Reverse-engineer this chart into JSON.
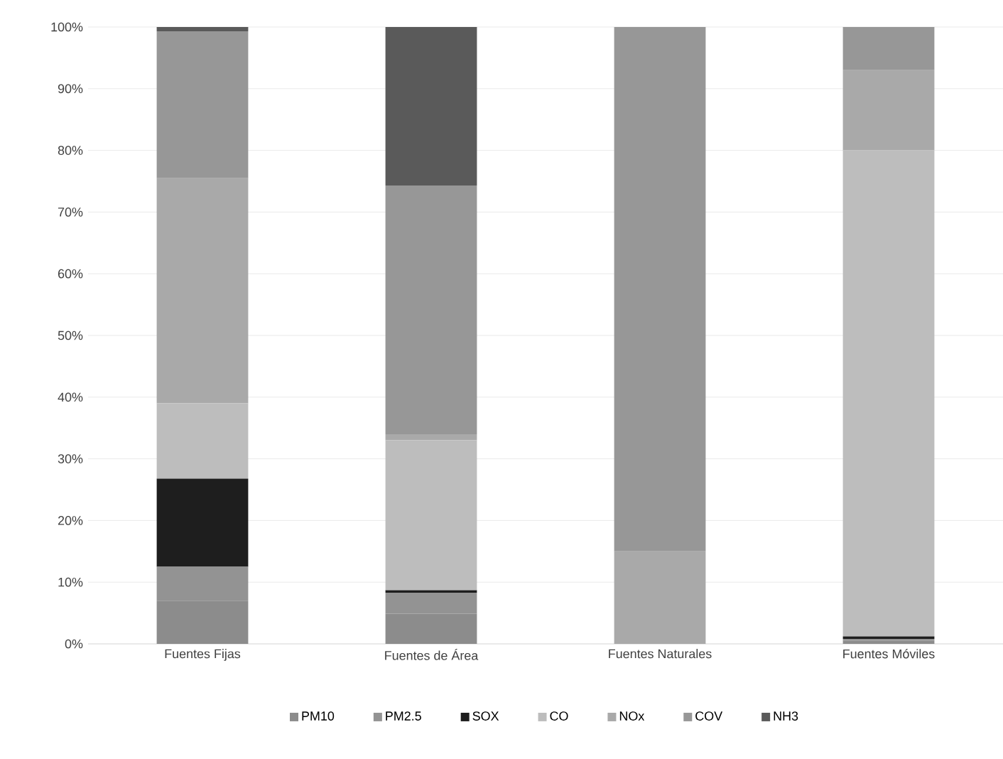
{
  "chart_data": {
    "type": "bar",
    "stacked": true,
    "categories": [
      "Fuentes Fijas",
      "Fuentes de Área",
      "Fuentes Naturales",
      "Fuentes Móviles"
    ],
    "series": [
      {
        "name": "PM10",
        "color": "#8c8c8c",
        "values": [
          7,
          4.9,
          0,
          0.5
        ]
      },
      {
        "name": "PM2.5",
        "color": "#939393",
        "values": [
          5.5,
          3.4,
          0,
          0.3
        ]
      },
      {
        "name": "SOX",
        "color": "#1e1e1e",
        "values": [
          14.3,
          0.4,
          0,
          0.4
        ]
      },
      {
        "name": "CO",
        "color": "#bdbdbd",
        "values": [
          12.2,
          24.3,
          0,
          78.8
        ]
      },
      {
        "name": "NOx",
        "color": "#a9a9a9",
        "values": [
          36.5,
          1,
          15,
          13
        ]
      },
      {
        "name": "COV",
        "color": "#979797",
        "values": [
          23.8,
          40.3,
          85,
          7
        ]
      },
      {
        "name": "NH3",
        "color": "#5a5a5a",
        "values": [
          0.7,
          25.7,
          0,
          0
        ]
      }
    ],
    "ylim": [
      0,
      100
    ],
    "yticks": [
      {
        "value": 0,
        "label": "0%"
      },
      {
        "value": 10,
        "label": "10%"
      },
      {
        "value": 20,
        "label": "20%"
      },
      {
        "value": 30,
        "label": "30%"
      },
      {
        "value": 40,
        "label": "40%"
      },
      {
        "value": 50,
        "label": "50%"
      },
      {
        "value": 60,
        "label": "60%"
      },
      {
        "value": 70,
        "label": "70%"
      },
      {
        "value": 80,
        "label": "80%"
      },
      {
        "value": 90,
        "label": "90%"
      },
      {
        "value": 100,
        "label": "100%"
      }
    ],
    "grid": "y",
    "legend": "bottom"
  }
}
